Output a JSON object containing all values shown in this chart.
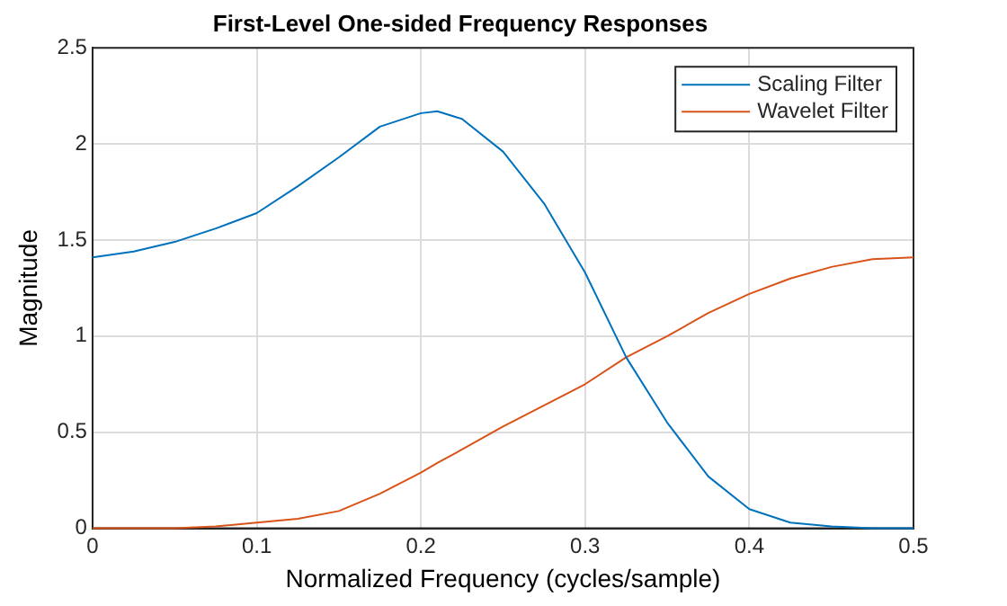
{
  "chart_data": {
    "type": "line",
    "title": "First-Level One-sided Frequency Responses",
    "xlabel": "Normalized Frequency (cycles/sample)",
    "ylabel": "Magnitude",
    "x": [
      0,
      0.025,
      0.05,
      0.075,
      0.1,
      0.125,
      0.15,
      0.175,
      0.2,
      0.21,
      0.225,
      0.25,
      0.275,
      0.3,
      0.325,
      0.35,
      0.375,
      0.4,
      0.425,
      0.45,
      0.475,
      0.5
    ],
    "series": [
      {
        "name": "Scaling Filter",
        "color": "#0072bd",
        "values": [
          1.41,
          1.44,
          1.49,
          1.56,
          1.64,
          1.78,
          1.93,
          2.09,
          2.16,
          2.17,
          2.13,
          1.96,
          1.69,
          1.33,
          0.89,
          0.55,
          0.27,
          0.1,
          0.03,
          0.01,
          0,
          0
        ]
      },
      {
        "name": "Wavelet Filter",
        "color": "#d95319",
        "values": [
          0,
          0,
          0,
          0.01,
          0.03,
          0.05,
          0.09,
          0.18,
          0.29,
          0.34,
          0.41,
          0.53,
          0.64,
          0.75,
          0.89,
          1.0,
          1.12,
          1.22,
          1.3,
          1.36,
          1.4,
          1.41
        ]
      }
    ],
    "xlim": [
      0,
      0.5
    ],
    "xticks": [
      0,
      0.1,
      0.2,
      0.3,
      0.4,
      0.5
    ],
    "ylim": [
      0,
      2.5
    ],
    "yticks": [
      0,
      0.5,
      1,
      1.5,
      2,
      2.5
    ],
    "grid": true,
    "legend": "top right",
    "marker": "none",
    "line_style": "solid"
  }
}
